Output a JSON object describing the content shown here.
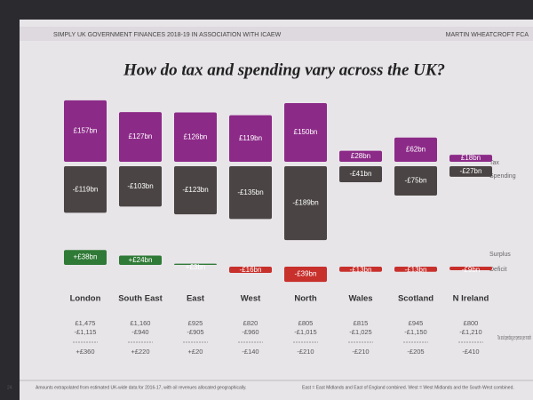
{
  "header": {
    "left": "SIMPLY UK GOVERNMENT FINANCES 2018-19 IN ASSOCIATION WITH ICAEW",
    "right": "MARTIN WHEATCROFT FCA"
  },
  "chart_data": {
    "type": "bar",
    "title": "How do tax and spending vary across the UK?",
    "categories": [
      "London",
      "South East",
      "East",
      "West",
      "North",
      "Wales",
      "Scotland",
      "N Ireland"
    ],
    "series": [
      {
        "name": "Tax",
        "color": "#8c2a88",
        "values": [
          157,
          127,
          126,
          119,
          150,
          28,
          62,
          18
        ],
        "value_labels": [
          "£157bn",
          "£127bn",
          "£126bn",
          "£119bn",
          "£150bn",
          "£28bn",
          "£62bn",
          "£18bn"
        ]
      },
      {
        "name": "Spending",
        "color": "#4a4444",
        "values": [
          -119,
          -103,
          -123,
          -135,
          -189,
          -41,
          -75,
          -27
        ],
        "value_labels": [
          "-£119bn",
          "-£103bn",
          "-£123bn",
          "-£135bn",
          "-£189bn",
          "-£41bn",
          "-£75bn",
          "-£27bn"
        ]
      },
      {
        "name": "Surplus",
        "color": "#2f7a36",
        "values": [
          38,
          24,
          3,
          null,
          null,
          null,
          null,
          null
        ],
        "value_labels": [
          "+£38bn",
          "+£24bn",
          "+£3bn",
          null,
          null,
          null,
          null,
          null
        ]
      },
      {
        "name": "Deficit",
        "color": "#c8302c",
        "values": [
          null,
          null,
          null,
          -16,
          -39,
          -13,
          -13,
          -9
        ],
        "value_labels": [
          null,
          null,
          null,
          "-£16bn",
          "-£39bn",
          "-£13bn",
          "-£13bn",
          "-£9bn"
        ]
      }
    ]
  },
  "per_person": {
    "label": "Tax and spending per person per month",
    "rows": [
      [
        "£1,475",
        "£1,160",
        "£925",
        "£820",
        "£805",
        "£815",
        "£945",
        "£800"
      ],
      [
        "-£1,115",
        "-£940",
        "-£905",
        "-£960",
        "-£1,015",
        "-£1,025",
        "-£1,150",
        "-£1,210"
      ],
      [
        "+£360",
        "+£220",
        "+£20",
        "-£140",
        "-£210",
        "-£210",
        "-£205",
        "-£410"
      ]
    ]
  },
  "footer": {
    "page": "24",
    "note": "Amounts extrapolated from estimated UK-wide data for 2016-17, with oil revenues allocated geographically.",
    "key": "East = East Midlands and East of England combined. West = West Midlands and the South West combined."
  }
}
